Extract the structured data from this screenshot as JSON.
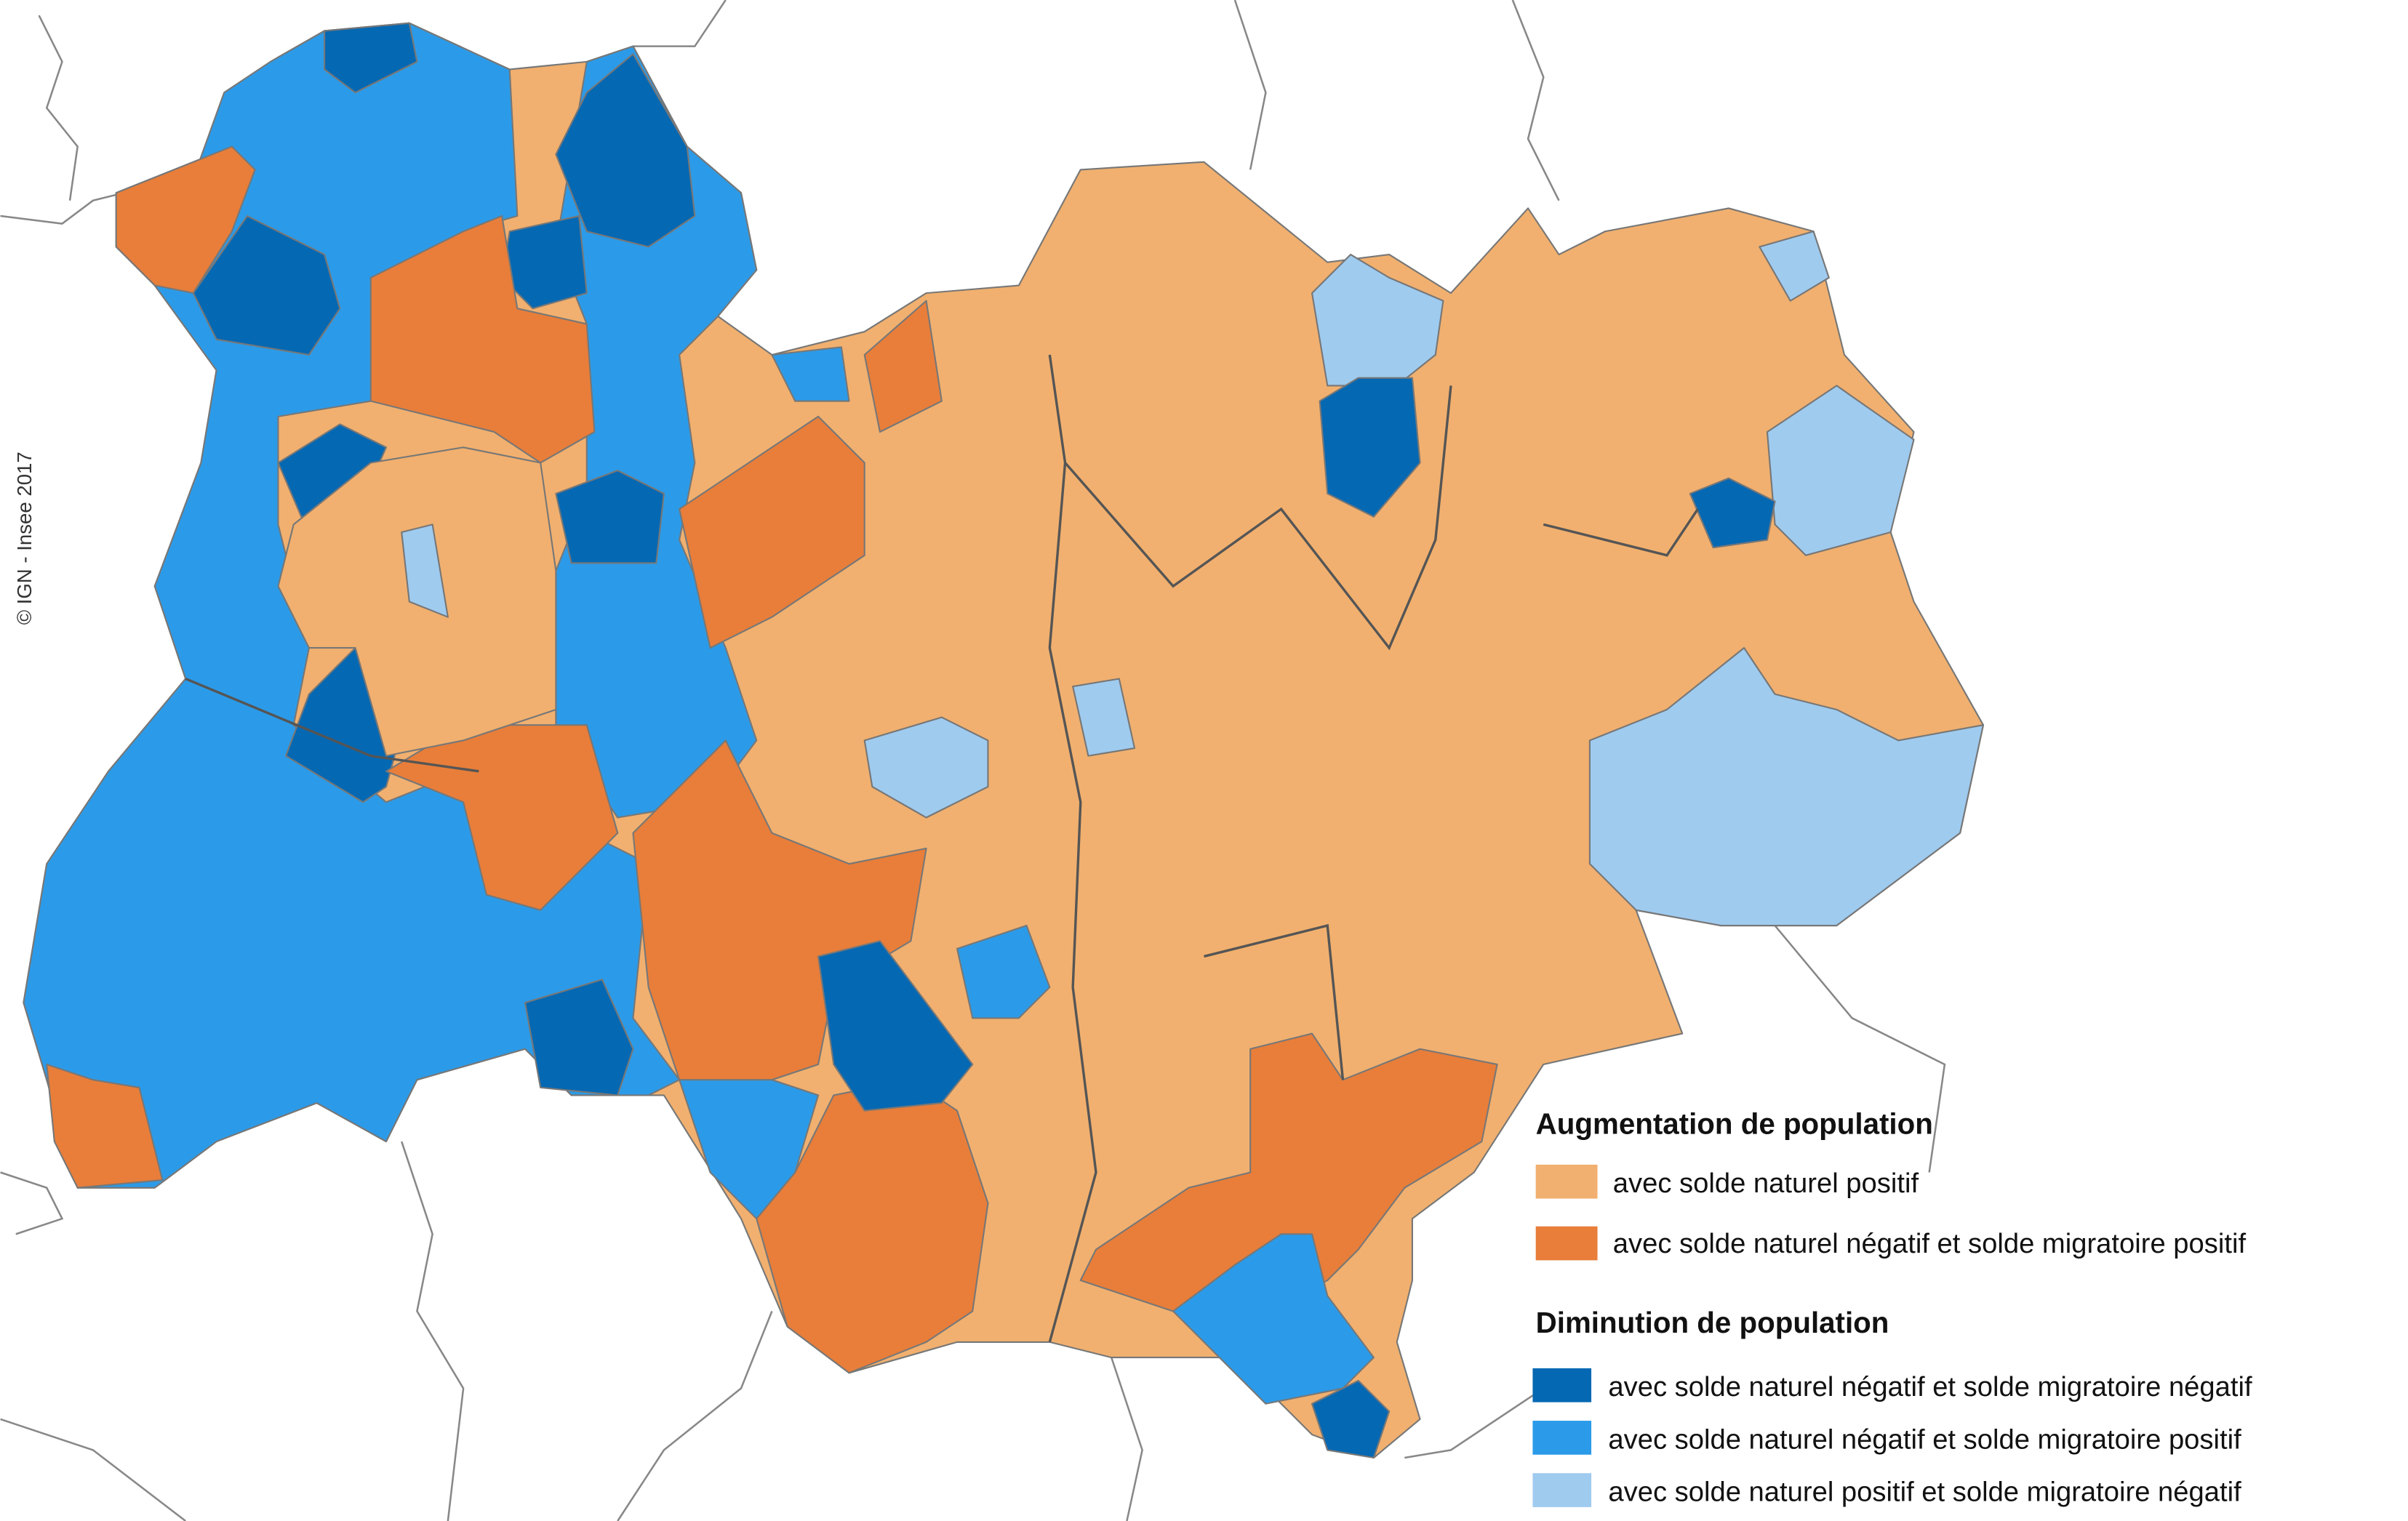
{
  "credit": "© IGN - Insee 2017",
  "legend": {
    "groups": [
      {
        "title": "Augmentation de population",
        "items": [
          {
            "label": "avec solde naturel positif",
            "color": "#f1b06f"
          },
          {
            "label": "avec solde naturel négatif et solde migratoire positif",
            "color": "#e87e3a"
          }
        ]
      },
      {
        "title": "Diminution de population",
        "items": [
          {
            "label": "avec solde naturel négatif et solde migratoire négatif",
            "color": "#0568b3"
          },
          {
            "label": "avec solde naturel négatif et solde migratoire positif",
            "color": "#2b9be9"
          },
          {
            "label": "avec solde naturel positif et solde migratoire négatif",
            "color": "#9fcbef"
          }
        ]
      }
    ]
  }
}
